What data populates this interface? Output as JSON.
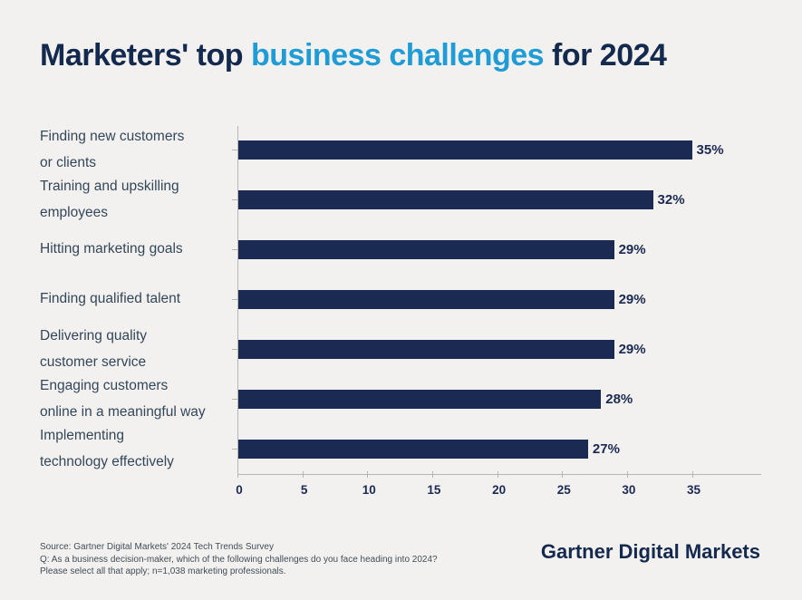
{
  "title": {
    "part1": "Marketers' top ",
    "part2": "business challenges",
    "part3": " for 2024"
  },
  "chart_data": {
    "type": "bar",
    "orientation": "horizontal",
    "categories": [
      "Finding new customers\nor clients",
      "Training and upskilling\nemployees",
      "Hitting marketing goals",
      "Finding qualified talent",
      "Delivering quality\ncustomer service",
      "Engaging customers\nonline in a meaningful way",
      "Implementing\ntechnology effectively"
    ],
    "values": [
      35,
      32,
      29,
      29,
      29,
      28,
      27
    ],
    "value_labels": [
      "35%",
      "32%",
      "29%",
      "29%",
      "29%",
      "28%",
      "27%"
    ],
    "title": "Marketers' top business challenges for 2024",
    "xlabel": "",
    "ylabel": "",
    "x_ticks": [
      0,
      5,
      10,
      15,
      20,
      25,
      30,
      35
    ],
    "xlim": [
      0,
      40.3
    ],
    "grid": "off",
    "legend": "none",
    "bar_color": "#1b2a52",
    "background_color": "#f2f1ef",
    "accent_color": "#1f9bd6"
  },
  "footer": {
    "source_line1": "Source: Gartner Digital Markets' 2024 Tech Trends Survey",
    "source_line2": "Q: As a business decision-maker, which of the following challenges do you face heading into 2024?",
    "source_line3": "Please select all that apply; n=1,038 marketing professionals.",
    "logo_text": "Gartner Digital Markets"
  }
}
